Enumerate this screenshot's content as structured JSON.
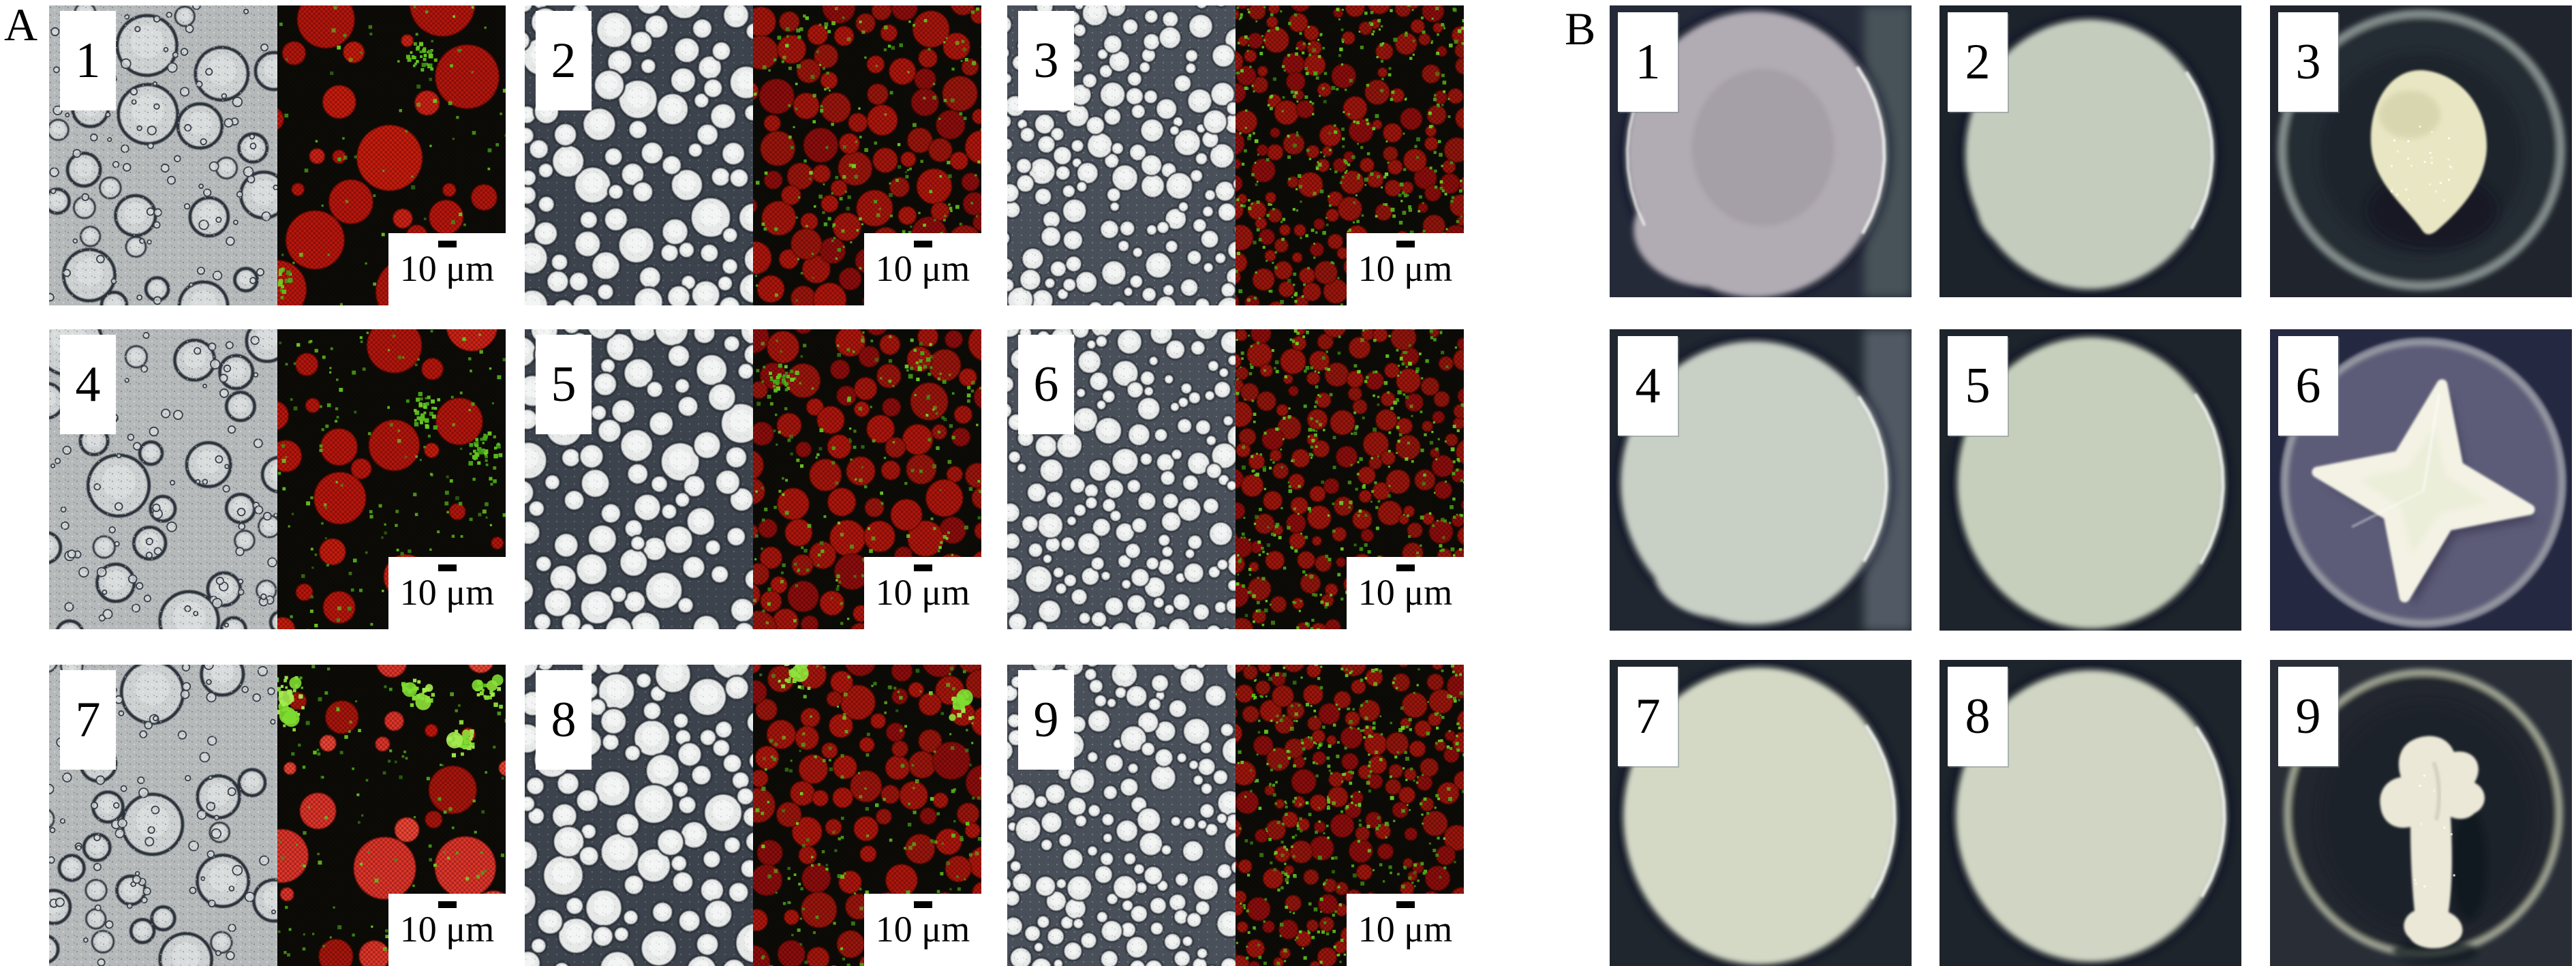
{
  "figure": {
    "panel_a": {
      "label": "A",
      "scale_bar_label": "10 μm",
      "description": "Paired bright-field (left) and confocal fluorescence (right) micrographs of emulsions",
      "items": [
        {
          "number": "1",
          "left": "bright-field micrograph",
          "right": "confocal micrograph",
          "pattern": "sparse-large",
          "green_level": "low"
        },
        {
          "number": "2",
          "left": "bright-field micrograph",
          "right": "confocal micrograph",
          "pattern": "packed-medium",
          "green_level": "low"
        },
        {
          "number": "3",
          "left": "bright-field micrograph",
          "right": "confocal micrograph",
          "pattern": "dense-small",
          "green_level": "network"
        },
        {
          "number": "4",
          "left": "bright-field micrograph",
          "right": "confocal micrograph",
          "pattern": "sparse-large",
          "green_level": "medium"
        },
        {
          "number": "5",
          "left": "bright-field micrograph",
          "right": "confocal micrograph",
          "pattern": "packed-medium",
          "green_level": "medium"
        },
        {
          "number": "6",
          "left": "bright-field micrograph",
          "right": "confocal micrograph",
          "pattern": "dense-small",
          "green_level": "network"
        },
        {
          "number": "7",
          "left": "bright-field micrograph",
          "right": "confocal micrograph",
          "pattern": "sparse-large",
          "green_level": "clusters-high"
        },
        {
          "number": "8",
          "left": "bright-field micrograph",
          "right": "confocal micrograph",
          "pattern": "packed-medium",
          "green_level": "high"
        },
        {
          "number": "9",
          "left": "bright-field micrograph",
          "right": "confocal micrograph",
          "pattern": "dense-small",
          "green_level": "network-high"
        }
      ],
      "colors": {
        "bf_bg_sparse": "#b5b9ba",
        "bf_bg_packed": "#3d434d",
        "bf_bg_dense": "#4a505a",
        "bf_droplet_sparse": "#ccd0d1",
        "bf_droplet_packed": "#e7e9e9",
        "bf_ring": "#2b313a",
        "cf_bg": "#0c0c07",
        "cf_red": "#b01208",
        "cf_red_bright": "#ef4534",
        "cf_green": "#5ec21d",
        "cf_green_bright": "#8ee23a"
      }
    },
    "panel_b": {
      "label": "B",
      "description": "Macro photographs of emulsion gels on dark background",
      "items": [
        {
          "number": "1",
          "shape": "disc",
          "description": "pale mauve-grey gel disc, irregular left edge",
          "bg": "#252a39",
          "bg2": "#4e5a5e",
          "blob": "#b1abb3"
        },
        {
          "number": "2",
          "shape": "disc",
          "description": "pale green-grey gel disc",
          "bg": "#1c232b",
          "blob": "#c4ccbe"
        },
        {
          "number": "3",
          "shape": "dish-blob",
          "description": "small cream blob inside glass dish",
          "bg": "#20252d",
          "ring": "#8d9896",
          "blob": "#e9e6c3"
        },
        {
          "number": "4",
          "shape": "disc",
          "description": "pale grey-green gel disc with droop",
          "bg": "#202730",
          "bg2": "#59636c",
          "blob": "#c8cfc5"
        },
        {
          "number": "5",
          "shape": "disc",
          "description": "pale sage gel disc",
          "bg": "#1d242b",
          "blob": "#c6cfbc"
        },
        {
          "number": "6",
          "shape": "star",
          "description": "white star-shaped molded gel on purple dish",
          "bg": "#242840",
          "dish": "#5d5c78",
          "ring": "#b9c1bb",
          "blob": "#f3f2e4"
        },
        {
          "number": "7",
          "shape": "disc",
          "description": "pale cream gel disc",
          "bg": "#1f262d",
          "blob": "#d4d9c6"
        },
        {
          "number": "8",
          "shape": "disc",
          "description": "pale cream gel disc",
          "bg": "#1d242b",
          "blob": "#d0d6c3"
        },
        {
          "number": "9",
          "shape": "molded-blob",
          "description": "white molded gel shape in glass dish",
          "bg": "#282d36",
          "ring": "#b2b8a3",
          "blob": "#ebe8d7"
        }
      ]
    }
  }
}
